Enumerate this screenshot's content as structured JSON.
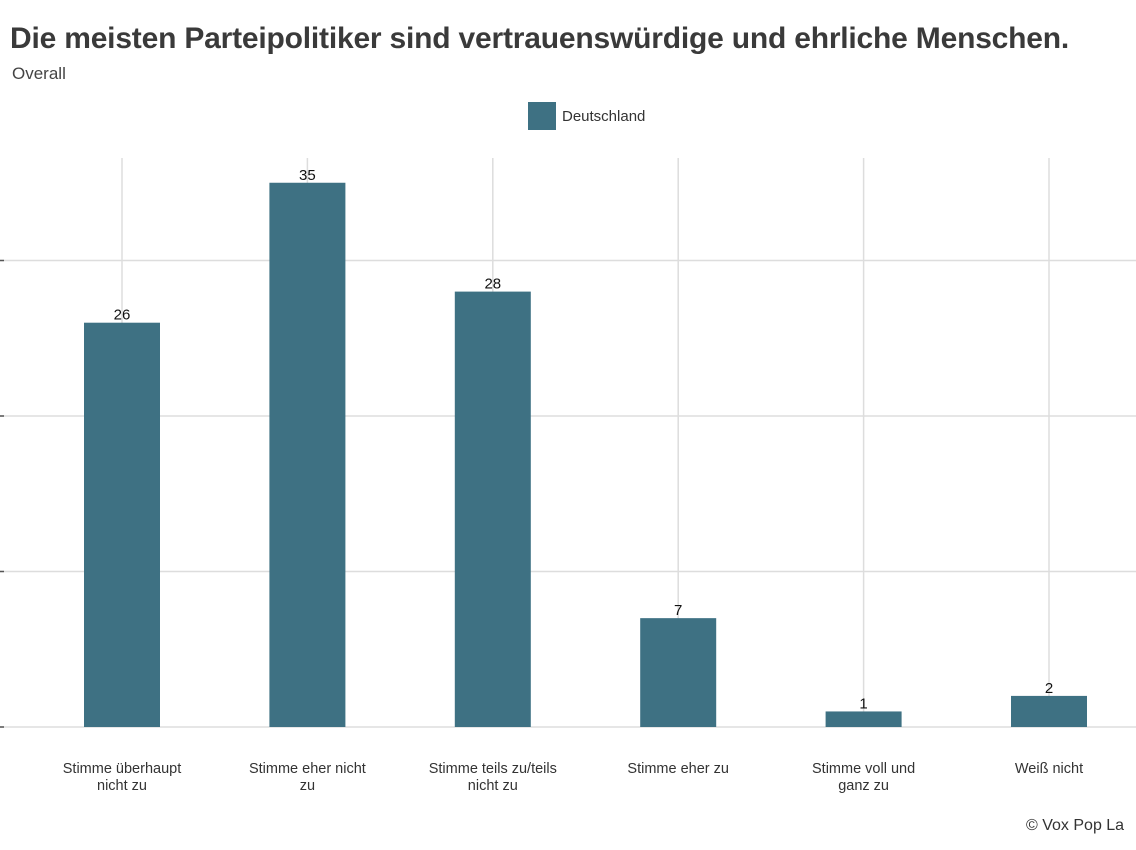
{
  "title": "Die meisten Parteipolitiker sind vertrauenswürdige und ehrliche Menschen.",
  "subtitle": "Overall",
  "credit": "© Vox Pop La",
  "colors": {
    "bar": "#3e7183",
    "grid": "#dddddd"
  },
  "chart_data": {
    "type": "bar",
    "categories": [
      "Stimme überhaupt nicht zu",
      "Stimme eher nicht zu",
      "Stimme teils zu/teils nicht zu",
      "Stimme eher zu",
      "Stimme voll und ganz zu",
      "Weiß nicht"
    ],
    "series": [
      {
        "name": "Deutschland",
        "values": [
          26,
          35,
          28,
          7,
          1,
          2
        ]
      }
    ],
    "data_labels": [
      "26",
      "35",
      "28",
      "7",
      "1",
      "2"
    ],
    "ylim": [
      0,
      37
    ],
    "y_gridlines": [
      0,
      10,
      20,
      30
    ],
    "legend": "top-center",
    "grid": true
  }
}
